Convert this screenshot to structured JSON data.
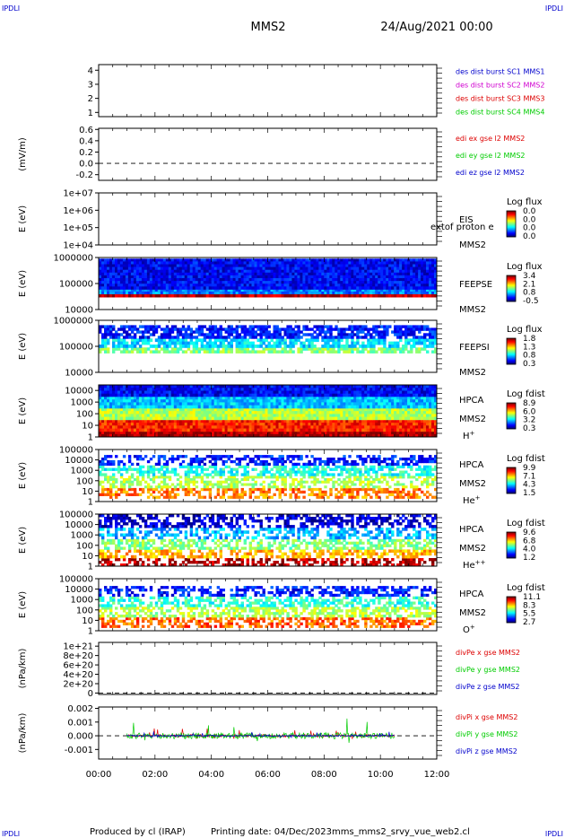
{
  "header": {
    "corner_left": "IPDLI",
    "corner_right": "IPDLI",
    "title": "MMS2",
    "date": "24/Aug/2021 00:00"
  },
  "footer": {
    "corner_left": "IPDLI",
    "corner_right": "IPDLI",
    "produced": "Produced by cl (IRAP)",
    "printing": "Printing date: 04/Dec/2023",
    "file": "mms_mms2_srvy_vue_web2.cl"
  },
  "time_axis": {
    "ticks": [
      "00:00",
      "02:00",
      "04:00",
      "06:00",
      "08:00",
      "10:00",
      "12:00"
    ],
    "range_hours": [
      0,
      12
    ]
  },
  "colors": {
    "mms1": "#0000cc",
    "mms2": "#d000d0",
    "mms3": "#dd0000",
    "mms4": "#00cc00",
    "x": "#dd0000",
    "y": "#00cc00",
    "z": "#0000cc"
  },
  "chart_data": [
    {
      "id": "panel-des",
      "type": "line",
      "ylabel": "",
      "yticks": [
        "1",
        "2",
        "3",
        "4"
      ],
      "ylim": [
        0.7,
        4.4
      ],
      "legend": [
        {
          "text": "des dist burst SC1 MMS1",
          "color": "#0000cc"
        },
        {
          "text": "des dist burst SC2 MMS2",
          "color": "#d000d0"
        },
        {
          "text": "des dist burst SC3 MMS3",
          "color": "#dd0000"
        },
        {
          "text": "des dist burst SC4 MMS4",
          "color": "#00cc00"
        }
      ],
      "series": []
    },
    {
      "id": "panel-edi",
      "type": "line",
      "ylabel": "(mV/m)",
      "yticks": [
        "-0.2",
        "0.0",
        "0.2",
        "0.4",
        "0.6"
      ],
      "ylim": [
        -0.3,
        0.62
      ],
      "zero_line": true,
      "legend": [
        {
          "text": "edi ex gse l2 MMS2",
          "color": "#dd0000"
        },
        {
          "text": "edi ey gse l2 MMS2",
          "color": "#00cc00"
        },
        {
          "text": "edi ez gse l2 MMS2",
          "color": "#0000cc"
        }
      ],
      "series": []
    },
    {
      "id": "panel-eis",
      "type": "heatmap",
      "ylabel": "E (eV)",
      "yticks": [
        "1e+04",
        "1e+05",
        "1e+06",
        "1e+07"
      ],
      "log_y": true,
      "ylim": [
        10000,
        10000000
      ],
      "right_labels": [
        "EIS",
        "MMS2"
      ],
      "overlay_text": "extof proton e",
      "colorbar_title": "Log flux",
      "colorbar_ticks": [
        "0.0",
        "0.0",
        "0.0",
        "0.0"
      ],
      "coverage": []
    },
    {
      "id": "panel-feepse",
      "type": "heatmap",
      "ylabel": "E (eV)",
      "yticks": [
        "10000",
        "100000",
        "1000000"
      ],
      "log_y": true,
      "ylim": [
        10000,
        1000000
      ],
      "right_labels": [
        "FEEPSE",
        "MMS2"
      ],
      "colorbar_title": "Log flux",
      "colorbar_ticks": [
        "3.4",
        "2.1",
        "0.8",
        "-0.5"
      ],
      "coverage": [
        {
          "t0": 0.0,
          "t1": 12.0,
          "e_min": 30000,
          "e_max": 40000,
          "level": 0.95
        },
        {
          "t0": 0.0,
          "t1": 12.0,
          "e_min": 40000,
          "e_max": 60000,
          "level": 0.25
        },
        {
          "t0": 0.0,
          "t1": 12.0,
          "e_min": 60000,
          "e_max": 900000,
          "level": 0.12
        }
      ]
    },
    {
      "id": "panel-feepsi",
      "type": "heatmap",
      "ylabel": "E (eV)",
      "yticks": [
        "10000",
        "100000",
        "1000000"
      ],
      "log_y": true,
      "ylim": [
        10000,
        1000000
      ],
      "right_labels": [
        "FEEPSI",
        "MMS2"
      ],
      "colorbar_title": "Log flux",
      "colorbar_ticks": [
        "1.8",
        "1.3",
        "0.8",
        "0.3"
      ],
      "coverage": [
        {
          "t0": 0.0,
          "t1": 12.0,
          "e_min": 55000,
          "e_max": 90000,
          "level": 0.5
        },
        {
          "t0": 0.0,
          "t1": 12.0,
          "e_min": 90000,
          "e_max": 200000,
          "level": 0.35
        },
        {
          "t0": 0.0,
          "t1": 12.0,
          "e_min": 200000,
          "e_max": 650000,
          "level": 0.15
        }
      ]
    },
    {
      "id": "panel-hpca-h",
      "type": "heatmap",
      "ylabel": "E (eV)",
      "yticks": [
        "1",
        "10",
        "100",
        "1000",
        "10000"
      ],
      "log_y": true,
      "ylim": [
        1,
        30000
      ],
      "right_labels": [
        "HPCA",
        "MMS2",
        "H+"
      ],
      "colorbar_title": "Log fdist",
      "colorbar_ticks": [
        "8.9",
        "6.0",
        "3.2",
        "0.3"
      ],
      "coverage": [
        {
          "t0": 0.0,
          "t1": 12.0,
          "e_min": 1,
          "e_max": 3,
          "level": 0.96
        },
        {
          "t0": 0.0,
          "t1": 12.0,
          "e_min": 3,
          "e_max": 30,
          "level": 0.85
        },
        {
          "t0": 0.0,
          "t1": 12.0,
          "e_min": 30,
          "e_max": 300,
          "level": 0.55
        },
        {
          "t0": 0.0,
          "t1": 12.0,
          "e_min": 300,
          "e_max": 3000,
          "level": 0.32
        },
        {
          "t0": 0.0,
          "t1": 12.0,
          "e_min": 3000,
          "e_max": 30000,
          "level": 0.12
        }
      ]
    },
    {
      "id": "panel-hpca-he",
      "type": "heatmap",
      "ylabel": "E (eV)",
      "yticks": [
        "1",
        "10",
        "100",
        "1000",
        "10000",
        "100000"
      ],
      "log_y": true,
      "ylim": [
        1,
        100000
      ],
      "right_labels": [
        "HPCA",
        "MMS2",
        "He+"
      ],
      "colorbar_title": "Log fdist",
      "colorbar_ticks": [
        "9.9",
        "7.1",
        "4.3",
        "1.5"
      ],
      "coverage": [
        {
          "t0": 0.0,
          "t1": 12.0,
          "e_min": 2,
          "e_max": 20,
          "level": 0.75
        },
        {
          "t0": 0.0,
          "t1": 12.0,
          "e_min": 20,
          "e_max": 300,
          "level": 0.55
        },
        {
          "t0": 0.0,
          "t1": 12.0,
          "e_min": 300,
          "e_max": 3000,
          "level": 0.4
        },
        {
          "t0": 0.0,
          "t1": 12.0,
          "e_min": 3000,
          "e_max": 30000,
          "level": 0.15
        }
      ]
    },
    {
      "id": "panel-hpca-hepp",
      "type": "heatmap",
      "ylabel": "E (eV)",
      "yticks": [
        "1",
        "10",
        "100",
        "1000",
        "10000",
        "100000"
      ],
      "log_y": true,
      "ylim": [
        1,
        100000
      ],
      "right_labels": [
        "HPCA",
        "MMS2",
        "He++"
      ],
      "colorbar_title": "Log fdist",
      "colorbar_ticks": [
        "9.6",
        "6.8",
        "4.0",
        "1.2"
      ],
      "coverage": [
        {
          "t0": 0.0,
          "t1": 12.0,
          "e_min": 1,
          "e_max": 6,
          "level": 0.95
        },
        {
          "t0": 0.0,
          "t1": 12.0,
          "e_min": 6,
          "e_max": 40,
          "level": 0.7
        },
        {
          "t0": 0.0,
          "t1": 12.0,
          "e_min": 40,
          "e_max": 400,
          "level": 0.5
        },
        {
          "t0": 0.0,
          "t1": 12.0,
          "e_min": 400,
          "e_max": 5000,
          "level": 0.3
        },
        {
          "t0": 0.0,
          "t1": 12.0,
          "e_min": 5000,
          "e_max": 100000,
          "level": 0.08
        }
      ]
    },
    {
      "id": "panel-hpca-o",
      "type": "heatmap",
      "ylabel": "E (eV)",
      "yticks": [
        "1",
        "10",
        "100",
        "1000",
        "10000",
        "100000"
      ],
      "log_y": true,
      "ylim": [
        1,
        100000
      ],
      "right_labels": [
        "HPCA",
        "MMS2",
        "O+"
      ],
      "colorbar_title": "Log fdist",
      "colorbar_ticks": [
        "11.1",
        "8.3",
        "5.5",
        "2.7"
      ],
      "coverage": [
        {
          "t0": 0.0,
          "t1": 12.0,
          "e_min": 2,
          "e_max": 20,
          "level": 0.78
        },
        {
          "t0": 0.0,
          "t1": 12.0,
          "e_min": 20,
          "e_max": 200,
          "level": 0.55
        },
        {
          "t0": 0.0,
          "t1": 12.0,
          "e_min": 200,
          "e_max": 2000,
          "level": 0.42
        },
        {
          "t0": 0.0,
          "t1": 12.0,
          "e_min": 2000,
          "e_max": 20000,
          "level": 0.15
        }
      ]
    },
    {
      "id": "panel-divpe",
      "type": "line",
      "ylabel": "(nPa/km)",
      "yticks": [
        "0",
        "2e+20",
        "4e+20",
        "6e+20",
        "8e+20",
        "1e+21"
      ],
      "ylim": [
        -3e+19,
        1.08e+21
      ],
      "zero_line": true,
      "legend": [
        {
          "text": "divPe x gse MMS2",
          "color": "#dd0000"
        },
        {
          "text": "divPe y gse MMS2",
          "color": "#00cc00"
        },
        {
          "text": "divPe z gse MMS2",
          "color": "#0000cc"
        }
      ],
      "series": []
    },
    {
      "id": "panel-divpi",
      "type": "line",
      "ylabel": "(nPa/km)",
      "yticks": [
        "-0.001",
        "0.000",
        "0.001",
        "0.002"
      ],
      "ylim": [
        -0.0017,
        0.0021
      ],
      "zero_line": true,
      "legend": [
        {
          "text": "divPi x gse MMS2",
          "color": "#dd0000"
        },
        {
          "text": "divPi y gse MMS2",
          "color": "#00cc00"
        },
        {
          "text": "divPi z gse MMS2",
          "color": "#0000cc"
        }
      ],
      "data_interval_hours": [
        1.0,
        10.5
      ],
      "series": [
        {
          "name": "divPi x gse MMS2",
          "color": "#dd0000",
          "amplitude": 0.0004
        },
        {
          "name": "divPi y gse MMS2",
          "color": "#00cc00",
          "amplitude": 0.0009
        },
        {
          "name": "divPi z gse MMS2",
          "color": "#0000cc",
          "amplitude": 0.00025
        }
      ]
    }
  ]
}
